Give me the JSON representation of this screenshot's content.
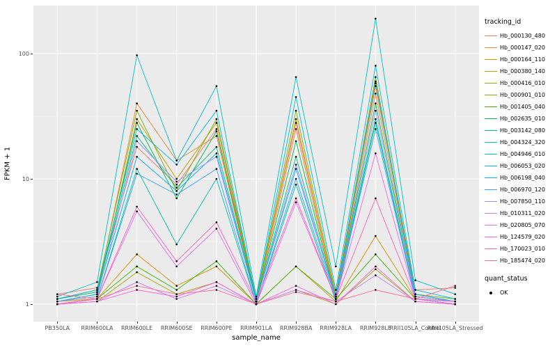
{
  "chart_data": {
    "type": "line",
    "title": "",
    "xlabel": "sample_name",
    "ylabel": "FPKM + 1",
    "legend_title": "tracking_id",
    "legend2_title": "quant_status",
    "legend2_items": [
      "OK"
    ],
    "legend_position": "right",
    "grid": true,
    "panel_background": "#EBEBEB",
    "gridline_color": "#FFFFFF",
    "point_color": "#000000",
    "y_scale": "log10",
    "ylim": [
      0.73,
      240
    ],
    "y_ticks": [
      {
        "label": "1",
        "value": 1
      },
      {
        "label": "10",
        "value": 10
      },
      {
        "label": "100",
        "value": 100
      }
    ],
    "minor_gridlines": [
      3.1623,
      31.623
    ],
    "categories": [
      "PB350LA",
      "RRIM600LA",
      "RRIM600LE",
      "RRIM600SE",
      "RRIM600PE",
      "RRIM901LA",
      "RRIM928BA",
      "RRIM928LA",
      "RRIM928LE",
      "RRII105LA_Control",
      "RRII105LA_Stressed"
    ],
    "series": [
      {
        "name": "Hb_000130_480",
        "color": "#F8766D",
        "values": [
          1.2,
          1.35,
          18,
          9.0,
          25,
          1.1,
          28,
          1.15,
          55,
          1.3,
          1.35
        ]
      },
      {
        "name": "Hb_000147_020",
        "color": "#EA8331",
        "values": [
          1.1,
          1.25,
          40,
          14,
          22,
          1.05,
          25,
          1.1,
          48,
          1.2,
          1.05
        ]
      },
      {
        "name": "Hb_000164_110",
        "color": "#D89000",
        "values": [
          1.05,
          1.1,
          2.5,
          1.4,
          2.0,
          1.0,
          2.0,
          1.05,
          3.5,
          1.1,
          1.0
        ]
      },
      {
        "name": "Hb_000380_140",
        "color": "#C09B00",
        "values": [
          1.05,
          1.15,
          30,
          10,
          28,
          1.1,
          30,
          1.15,
          60,
          1.15,
          1.05
        ]
      },
      {
        "name": "Hb_000416_010",
        "color": "#A3A500",
        "values": [
          1.0,
          1.05,
          1.8,
          1.2,
          1.5,
          1.0,
          1.3,
          1.0,
          1.9,
          1.05,
          1.0
        ]
      },
      {
        "name": "Hb_000901_010",
        "color": "#7CAE00",
        "values": [
          1.1,
          1.3,
          35,
          8.0,
          30,
          1.1,
          35,
          1.2,
          65,
          1.2,
          1.1
        ]
      },
      {
        "name": "Hb_001405_040",
        "color": "#39B600",
        "values": [
          1.0,
          1.1,
          2.0,
          1.3,
          2.2,
          1.0,
          2.0,
          1.1,
          2.5,
          1.1,
          1.0
        ]
      },
      {
        "name": "Hb_002635_010",
        "color": "#00BB4E",
        "values": [
          1.05,
          1.2,
          28,
          7.0,
          24,
          1.05,
          20,
          1.1,
          40,
          1.15,
          1.05
        ]
      },
      {
        "name": "Hb_003142_080",
        "color": "#00BF7D",
        "values": [
          1.1,
          1.25,
          22,
          8.5,
          18,
          1.05,
          15,
          1.1,
          30,
          1.1,
          1.05
        ]
      },
      {
        "name": "Hb_004324_320",
        "color": "#00C1A3",
        "values": [
          1.0,
          1.1,
          12,
          3.0,
          10,
          1.0,
          9.0,
          1.05,
          28,
          1.1,
          1.0
        ]
      },
      {
        "name": "Hb_004946_010",
        "color": "#00BFC4",
        "values": [
          1.15,
          1.5,
          97,
          14,
          55,
          1.15,
          65,
          2.0,
          190,
          1.55,
          1.2
        ]
      },
      {
        "name": "Hb_006053_020",
        "color": "#00BAE0",
        "values": [
          1.1,
          1.3,
          25,
          13,
          35,
          1.1,
          45,
          1.3,
          80,
          1.3,
          1.1
        ]
      },
      {
        "name": "Hb_006198_040",
        "color": "#00B0F6",
        "values": [
          1.05,
          1.2,
          15,
          8.0,
          16,
          1.05,
          12,
          1.15,
          58,
          1.2,
          1.05
        ]
      },
      {
        "name": "Hb_006970_120",
        "color": "#35A2FF",
        "values": [
          1.0,
          1.1,
          11,
          7.5,
          12,
          1.0,
          10,
          1.1,
          25,
          1.1,
          1.0
        ]
      },
      {
        "name": "Hb_007850_110",
        "color": "#9590FF",
        "values": [
          1.05,
          1.15,
          20,
          9.5,
          15,
          1.05,
          13,
          1.1,
          35,
          1.15,
          1.05
        ]
      },
      {
        "name": "Hb_010311_020",
        "color": "#C77CFF",
        "values": [
          1.0,
          1.05,
          1.5,
          1.1,
          1.4,
          1.0,
          1.3,
          1.05,
          1.7,
          1.05,
          1.0
        ]
      },
      {
        "name": "Hb_020805_070",
        "color": "#E76BF3",
        "values": [
          1.0,
          1.1,
          5.5,
          2.0,
          4.0,
          1.0,
          6.5,
          1.1,
          16,
          1.1,
          1.0
        ]
      },
      {
        "name": "Hb_124579_020",
        "color": "#FA62DB",
        "values": [
          1.0,
          1.05,
          1.3,
          1.15,
          1.5,
          1.0,
          1.4,
          1.0,
          2.0,
          1.05,
          1.0
        ]
      },
      {
        "name": "Hb_170023_010",
        "color": "#FF62BC",
        "values": [
          1.0,
          1.1,
          6.0,
          2.2,
          4.5,
          1.05,
          7.0,
          1.1,
          7.0,
          1.1,
          1.05
        ]
      },
      {
        "name": "Hb_185474_020",
        "color": "#FF6A98",
        "values": [
          1.2,
          1.1,
          1.4,
          1.2,
          1.3,
          1.0,
          1.25,
          1.05,
          1.3,
          1.1,
          1.4
        ]
      }
    ]
  }
}
